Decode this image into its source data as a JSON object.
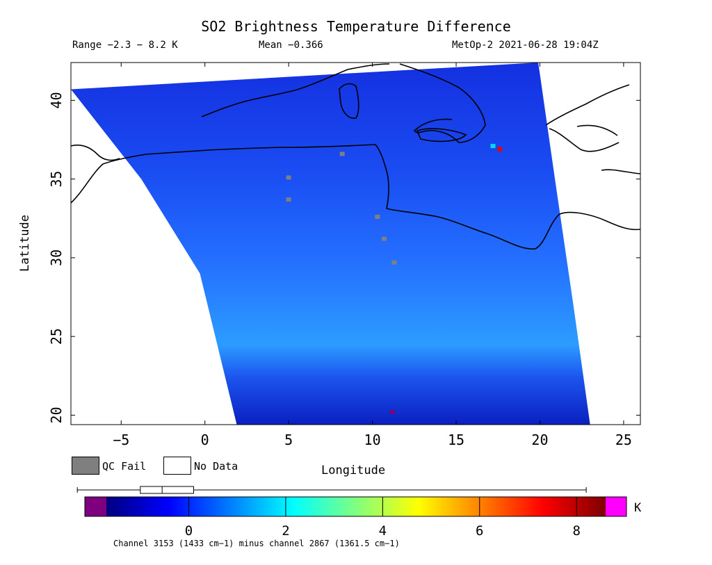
{
  "header": {
    "title": "SO2 Brightness Temperature Difference",
    "range": "Range −2.3 − 8.2 K",
    "mean": "Mean −0.366",
    "satellite": "MetOp-2 2021-06-28 19:04Z"
  },
  "legend": {
    "qc_fail": "QC Fail",
    "no_data": "No Data",
    "qc_color": "#7f7f7f",
    "no_data_color": "#ffffff"
  },
  "colorbar": {
    "units": "K",
    "ticks": [
      "0",
      "2",
      "4",
      "6",
      "8"
    ],
    "tick_values": [
      0,
      2,
      4,
      6,
      8
    ],
    "range": [
      -1.7,
      8.6
    ],
    "under_color": "#7f007f",
    "over_color": "#ff00ff",
    "colors": [
      "#00007f",
      "#0000ff",
      "#0080ff",
      "#00ffff",
      "#80ff80",
      "#ffff00",
      "#ff8000",
      "#ff0000",
      "#7f0000"
    ],
    "boxplot": {
      "min": -2.3,
      "q1": -1.0,
      "median": -0.55,
      "q3": 0.1,
      "max": 8.2
    },
    "caption": "Channel 3153 (1433 cm−1) minus channel 2867 (1361.5 cm−1)"
  },
  "chart_data": {
    "type": "heatmap",
    "title": "SO2 Brightness Temperature Difference",
    "xlabel": "Longitude",
    "ylabel": "Latitude",
    "xlim": [
      -8,
      26
    ],
    "ylim": [
      19.4,
      42.4
    ],
    "x_ticks": [
      -5,
      0,
      5,
      10,
      15,
      20,
      25
    ],
    "y_ticks": [
      20,
      25,
      30,
      35,
      40
    ],
    "x_tick_labels": [
      "−5",
      "0",
      "5",
      "10",
      "15",
      "20",
      "25"
    ],
    "y_tick_labels": [
      "20",
      "25",
      "30",
      "35",
      "40"
    ],
    "swath": {
      "left_edge": [
        [
          -8,
          40.7
        ],
        [
          -3.8,
          35
        ],
        [
          -0.3,
          29
        ],
        [
          1.9,
          19.4
        ]
      ],
      "right_edge": [
        [
          19.9,
          42.4
        ],
        [
          20.9,
          35
        ],
        [
          22.0,
          27
        ],
        [
          23.0,
          19.4
        ]
      ]
    },
    "values_note_free": true,
    "features": [
      {
        "lon": 17.6,
        "lat": 36.9,
        "value": 7.5
      },
      {
        "lon": 17.2,
        "lat": 37.1,
        "value": 1.8
      },
      {
        "lon": 11.2,
        "lat": 20.2,
        "value": -1.9
      },
      {
        "lon": 8.2,
        "lat": 36.6,
        "value": "qc"
      },
      {
        "lon": 5.0,
        "lat": 35.1,
        "value": "qc"
      },
      {
        "lon": 5.0,
        "lat": 33.7,
        "value": "qc"
      },
      {
        "lon": 10.3,
        "lat": 32.6,
        "value": "qc"
      },
      {
        "lon": 10.7,
        "lat": 31.2,
        "value": "qc"
      },
      {
        "lon": 11.3,
        "lat": 29.7,
        "value": "qc"
      }
    ]
  }
}
